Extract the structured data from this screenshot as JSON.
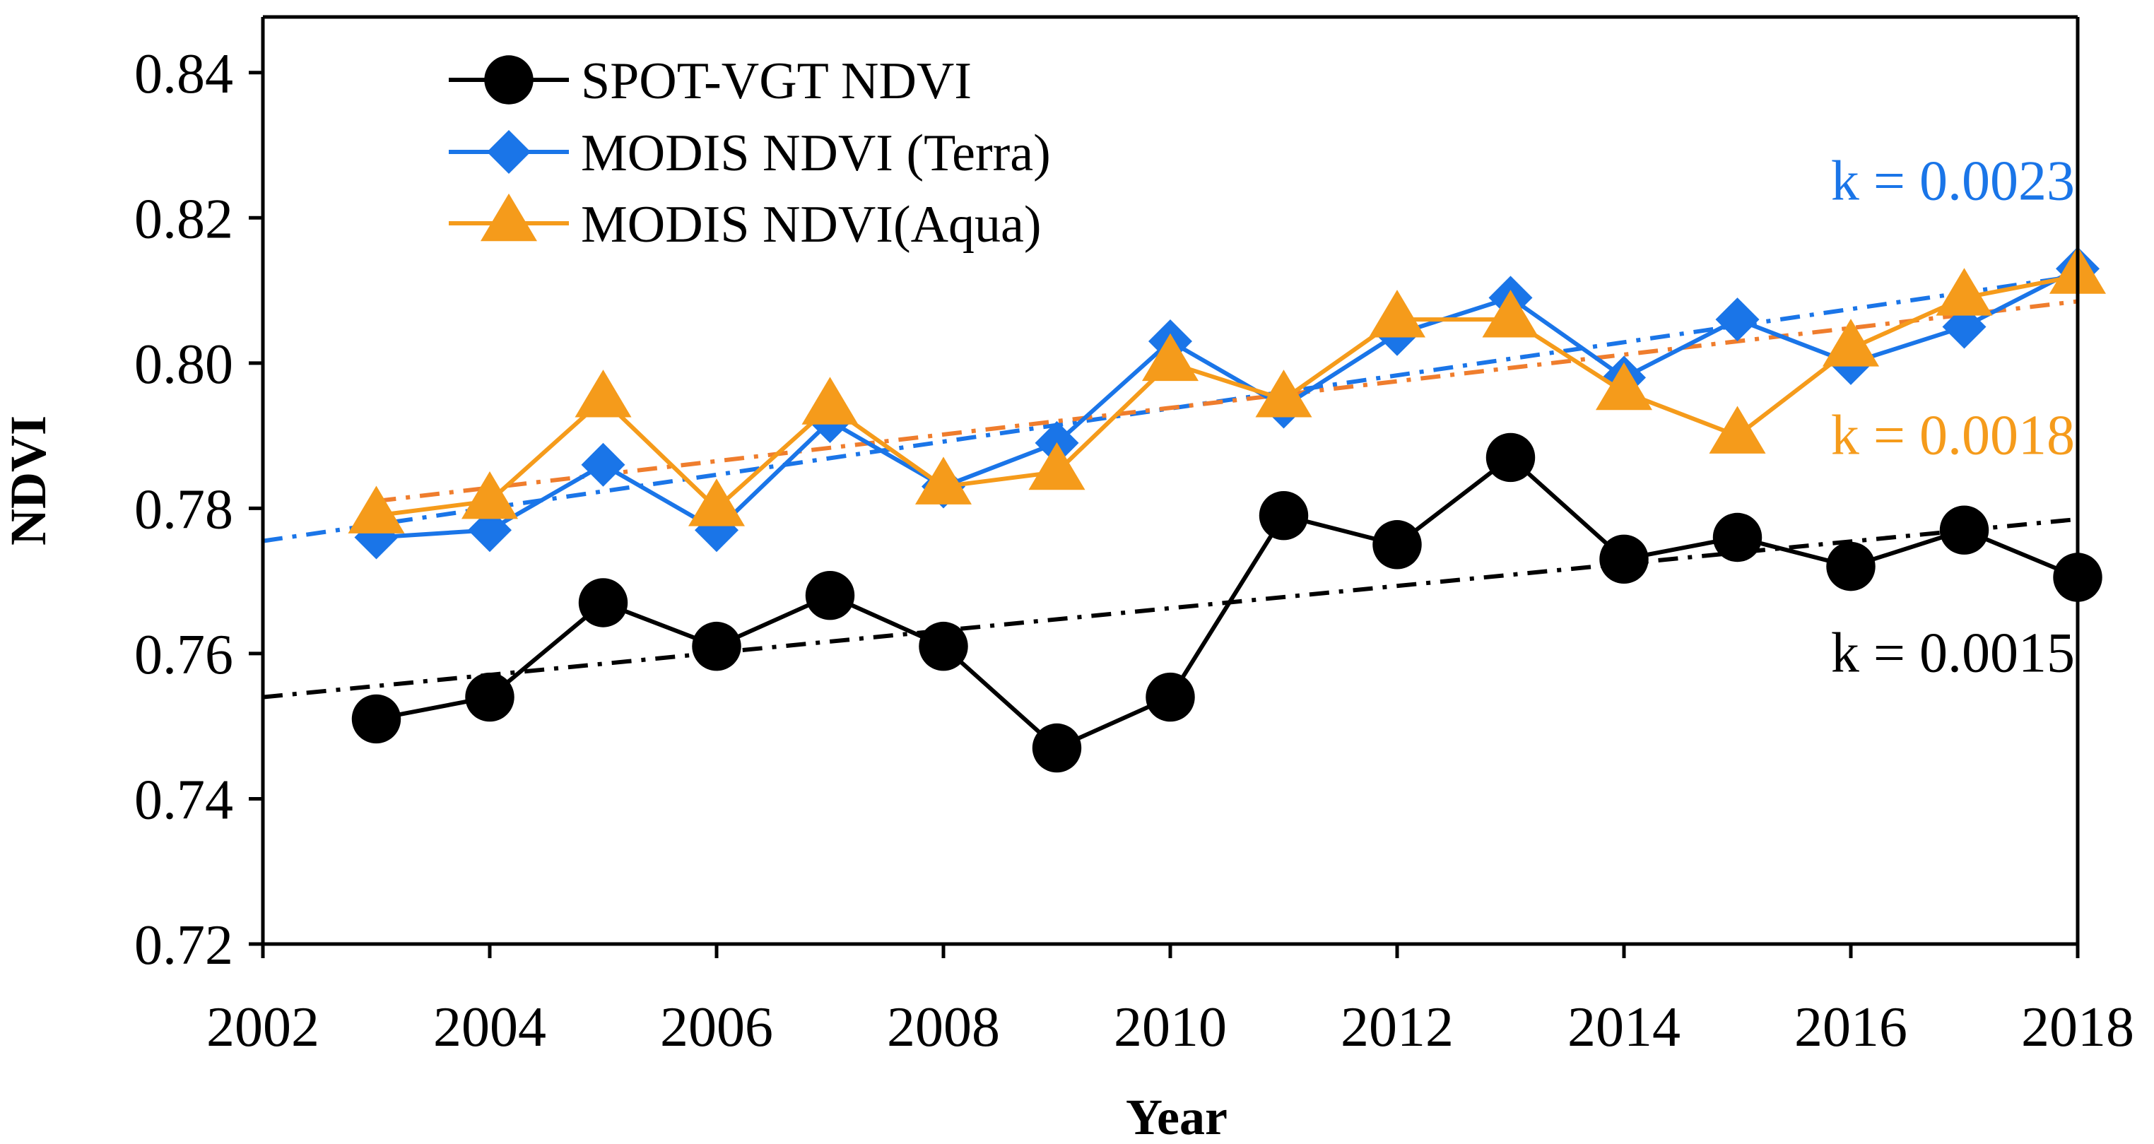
{
  "chart_data": {
    "type": "line",
    "title": "",
    "xlabel": "Year",
    "ylabel": "NDVI",
    "xlim": [
      2002,
      2018
    ],
    "ylim": [
      0.72,
      0.85
    ],
    "x_ticks": [
      "2002",
      "2004",
      "2006",
      "2008",
      "2010",
      "2012",
      "2014",
      "2016",
      "2018"
    ],
    "y_ticks": [
      "0.72",
      "0.74",
      "0.76",
      "0.78",
      "0.80",
      "0.82",
      "0.84"
    ],
    "grid": false,
    "legend_position": "top-left",
    "x": [
      2003,
      2004,
      2005,
      2006,
      2007,
      2008,
      2009,
      2010,
      2011,
      2012,
      2013,
      2014,
      2015,
      2016,
      2017,
      2018
    ],
    "series": [
      {
        "name": "SPOT-VGT NDVI",
        "color": "#000000",
        "marker": "circle",
        "values": [
          0.751,
          0.754,
          0.767,
          0.761,
          0.768,
          0.761,
          0.747,
          0.754,
          0.779,
          0.775,
          0.787,
          0.773,
          0.776,
          0.772,
          0.777,
          0.7705
        ],
        "trend": {
          "x": [
            2002,
            2018
          ],
          "y": [
            0.754,
            0.7785
          ],
          "color": "#000000",
          "style": "dash-dot"
        }
      },
      {
        "name": "MODIS NDVI (Terra)",
        "color": "#1a75e8",
        "marker": "diamond",
        "values": [
          0.776,
          0.777,
          0.786,
          0.777,
          0.792,
          0.783,
          0.789,
          0.803,
          0.794,
          0.804,
          0.809,
          0.798,
          0.806,
          0.8,
          0.805,
          0.813
        ],
        "trend": {
          "x": [
            2002,
            2018
          ],
          "y": [
            0.7755,
            0.812
          ],
          "color": "#1a75e8",
          "style": "dash-dot"
        }
      },
      {
        "name": "MODIS NDVI(Aqua)",
        "color": "#f59b1b",
        "marker": "triangle",
        "values": [
          0.779,
          0.781,
          0.795,
          0.78,
          0.794,
          0.783,
          0.785,
          0.8,
          0.795,
          0.806,
          0.806,
          0.796,
          0.79,
          0.802,
          0.809,
          0.812
        ],
        "trend": {
          "x": [
            2003,
            2018
          ],
          "y": [
            0.781,
            0.8085
          ],
          "color": "#ef7d2d",
          "style": "dash-dot"
        }
      }
    ],
    "annotations": [
      {
        "text": "k = 0.0023",
        "color": "#1a75e8",
        "x": 2016.9,
        "y": 0.8225
      },
      {
        "text": "k = 0.0018",
        "color": "#f59b1b",
        "x": 2016.9,
        "y": 0.7875
      },
      {
        "text": "k = 0.0015",
        "color": "#000000",
        "x": 2016.9,
        "y": 0.7575
      }
    ]
  }
}
